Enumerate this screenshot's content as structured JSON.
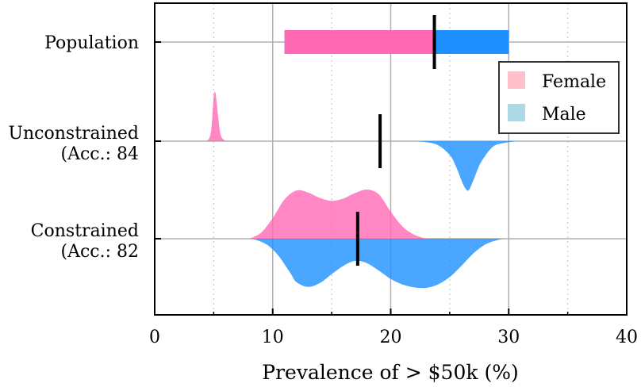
{
  "chart_data": {
    "type": "violin",
    "xlabel": "Prevalence of > $50k (%)",
    "xlim": [
      0,
      40
    ],
    "xticks": [
      0,
      10,
      20,
      30,
      40
    ],
    "minor_xticks": [
      5,
      15,
      25,
      35
    ],
    "grid": true,
    "legend": {
      "placement": "right",
      "entries": [
        {
          "label": "Female",
          "color": "#ffc0cb"
        },
        {
          "label": "Male",
          "color": "#add8e6"
        }
      ]
    },
    "colors": {
      "female": "#ff69b4",
      "male": "#1e90ff",
      "mean_marker": "#000000"
    },
    "rows": [
      {
        "label_lines": [
          "Population"
        ],
        "kind": "bar",
        "female": 11.0,
        "male": 30.0,
        "overall": 23.7
      },
      {
        "label_lines": [
          "Unconstrained",
          "(Acc.: 84"
        ],
        "kind": "violin",
        "mean": 19.1,
        "female_density": {
          "x": [
            4.3,
            4.6,
            4.8,
            5.0,
            5.1,
            5.2,
            5.4,
            5.6,
            5.9,
            6.2
          ],
          "val": [
            0.0,
            0.05,
            0.25,
            0.9,
            1.0,
            0.9,
            0.45,
            0.12,
            0.02,
            0.0
          ]
        },
        "male_density": {
          "x": [
            22.0,
            23.0,
            24.0,
            25.0,
            25.5,
            26.0,
            26.3,
            26.6,
            27.0,
            27.5,
            28.0,
            28.5,
            29.0,
            30.0,
            30.7
          ],
          "val": [
            0.0,
            0.02,
            0.08,
            0.28,
            0.5,
            0.8,
            0.95,
            1.0,
            0.8,
            0.5,
            0.3,
            0.15,
            0.07,
            0.02,
            0.0
          ]
        }
      },
      {
        "label_lines": [
          "Constrained",
          "(Acc.: 82"
        ],
        "kind": "violin",
        "mean": 17.2,
        "female_density": {
          "x": [
            8.0,
            9.0,
            10.0,
            11.0,
            12.0,
            13.0,
            14.0,
            15.0,
            16.0,
            17.0,
            18.0,
            19.0,
            20.0,
            21.0,
            22.0,
            23.0
          ],
          "val": [
            0.0,
            0.12,
            0.42,
            0.8,
            0.98,
            0.94,
            0.83,
            0.77,
            0.82,
            0.93,
            1.0,
            0.9,
            0.55,
            0.25,
            0.08,
            0.0
          ]
        },
        "male_density": {
          "x": [
            8.3,
            9.5,
            10.5,
            11.5,
            12.0,
            13.0,
            14.0,
            15.0,
            16.0,
            17.0,
            18.0,
            19.0,
            20.0,
            21.0,
            22.0,
            23.0,
            24.0,
            25.0,
            26.0,
            27.0,
            28.0,
            29.0,
            29.6
          ],
          "val": [
            0.0,
            0.12,
            0.35,
            0.7,
            0.88,
            0.98,
            0.9,
            0.72,
            0.55,
            0.45,
            0.5,
            0.65,
            0.82,
            0.93,
            0.99,
            1.0,
            0.93,
            0.78,
            0.55,
            0.3,
            0.12,
            0.03,
            0.0
          ]
        }
      }
    ]
  }
}
